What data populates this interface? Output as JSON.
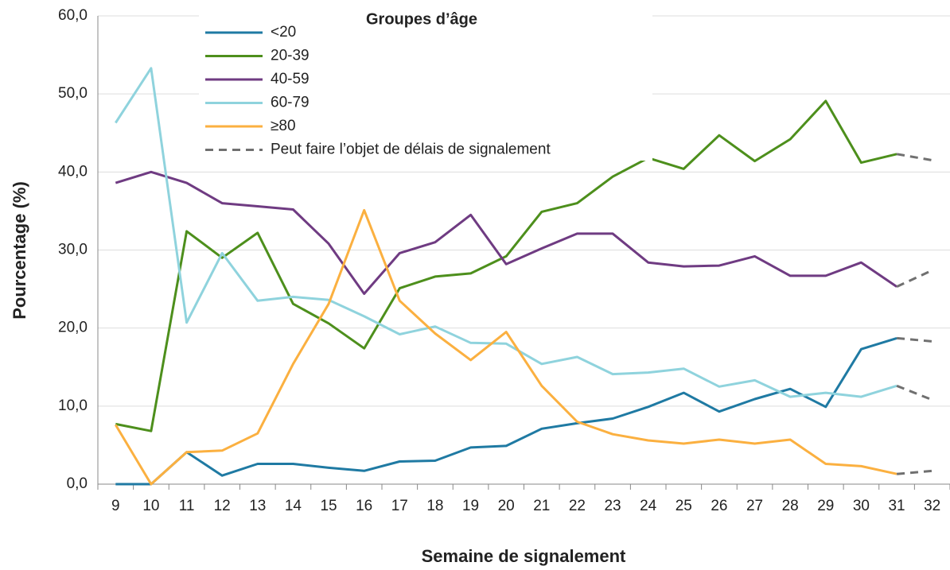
{
  "chart_data": {
    "type": "line",
    "legend_title": "Groupes d’âge",
    "ylabel": "Pourcentage (%)",
    "xlabel": "Semaine de signalement",
    "categories": [
      "9",
      "10",
      "11",
      "12",
      "13",
      "14",
      "15",
      "16",
      "17",
      "18",
      "19",
      "20",
      "21",
      "22",
      "23",
      "24",
      "25",
      "26",
      "27",
      "28",
      "29",
      "30",
      "31",
      "32"
    ],
    "ylim": [
      0,
      60
    ],
    "yticks": [
      {
        "value": 0,
        "label": "0,0"
      },
      {
        "value": 10,
        "label": "10,0"
      },
      {
        "value": 20,
        "label": "20,0"
      },
      {
        "value": 30,
        "label": "30,0"
      },
      {
        "value": 40,
        "label": "40,0"
      },
      {
        "value": 50,
        "label": "50,0"
      },
      {
        "value": 60,
        "label": "60,0"
      }
    ],
    "grid": true,
    "legend": "top",
    "series": [
      {
        "name": "<20",
        "color": "#1f7aa3",
        "values": [
          0,
          0,
          4.1,
          1.1,
          2.6,
          2.6,
          2.1,
          1.7,
          2.9,
          3.0,
          4.7,
          4.9,
          7.1,
          7.8,
          8.4,
          9.9,
          11.7,
          9.3,
          10.9,
          12.2,
          9.9,
          17.3,
          18.7,
          18.3
        ]
      },
      {
        "name": "20-39",
        "color": "#4d8f1c",
        "values": [
          7.7,
          6.8,
          32.4,
          29.0,
          32.2,
          23.1,
          20.6,
          17.4,
          25.1,
          26.6,
          27.0,
          29.2,
          34.9,
          36.0,
          39.4,
          41.8,
          40.4,
          44.7,
          41.4,
          44.2,
          49.1,
          41.2,
          42.3,
          41.5
        ]
      },
      {
        "name": "40-59",
        "color": "#6f3b82",
        "values": [
          38.6,
          40.0,
          38.6,
          36.0,
          35.6,
          35.2,
          30.8,
          24.4,
          29.6,
          31.0,
          34.5,
          28.2,
          30.2,
          32.1,
          32.1,
          28.4,
          27.9,
          28.0,
          29.2,
          26.7,
          26.7,
          28.4,
          25.3,
          27.4
        ]
      },
      {
        "name": "60-79",
        "color": "#8fd3dd",
        "values": [
          46.3,
          53.3,
          20.7,
          29.6,
          23.5,
          24.0,
          23.6,
          21.5,
          19.2,
          20.2,
          18.1,
          18.0,
          15.4,
          16.3,
          14.1,
          14.3,
          14.8,
          12.5,
          13.3,
          11.2,
          11.7,
          11.2,
          12.6,
          10.8
        ]
      },
      {
        "name": "≥80",
        "color": "#fbb040",
        "values": [
          7.6,
          0,
          4.1,
          4.3,
          6.5,
          15.4,
          23.1,
          35.1,
          23.5,
          19.3,
          15.9,
          19.5,
          12.6,
          8.0,
          6.4,
          5.6,
          5.2,
          5.7,
          5.2,
          5.7,
          2.6,
          2.3,
          1.3,
          1.7
        ]
      }
    ],
    "provisional": {
      "name": "Peut faire l’objet de délais de signalement",
      "color": "#707070",
      "from": "31"
    }
  }
}
